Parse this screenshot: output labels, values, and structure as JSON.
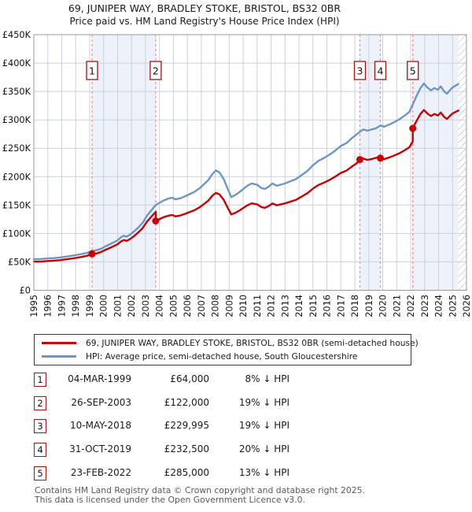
{
  "title": "69, JUNIPER WAY, BRADLEY STOKE, BRISTOL, BS32 0BR",
  "subtitle": "Price paid vs. HM Land Registry's House Price Index (HPI)",
  "chart_data": {
    "type": "line",
    "title": "69, JUNIPER WAY, BRADLEY STOKE, BRISTOL, BS32 0BR — Price paid vs. HPI",
    "x_range": [
      1995,
      2026
    ],
    "y_range_k": [
      0,
      450
    ],
    "y_tick_labels": [
      "£450K",
      "£400K",
      "£350K",
      "£300K",
      "£250K",
      "£200K",
      "£150K",
      "£100K",
      "£50K",
      "£0"
    ],
    "x_tick_labels": [
      "1995",
      "1996",
      "1997",
      "1998",
      "1999",
      "2000",
      "2001",
      "2002",
      "2003",
      "2004",
      "2005",
      "2006",
      "2007",
      "2008",
      "2009",
      "2010",
      "2011",
      "2012",
      "2013",
      "2014",
      "2015",
      "2016",
      "2017",
      "2018",
      "2019",
      "2020",
      "2021",
      "2022",
      "2023",
      "2024",
      "2025",
      "2026"
    ],
    "grid": true,
    "legend_position": "below",
    "colors": {
      "property": "#cc0000",
      "hpi": "#6d96c8",
      "band": "#edf1fa",
      "grid": "#ccd1da",
      "axis": "#999999",
      "sale_dash": "#f48c8c",
      "marker_border": "#aa1111",
      "hatch_line": "#aaaaaa"
    },
    "ownership_bands": [
      [
        1999.17,
        2003.73
      ],
      [
        2018.36,
        2019.83
      ],
      [
        2022.15,
        2025.42
      ]
    ],
    "future_hatch": [
      2025.42,
      2026
    ],
    "series": [
      {
        "name": "HPI: Average price, semi-detached house, South Gloucestershire",
        "color": "#6d96c8",
        "points": [
          [
            1995.0,
            55
          ],
          [
            1995.3,
            54.6
          ],
          [
            1995.6,
            55.2
          ],
          [
            1996.0,
            56
          ],
          [
            1996.4,
            56.6
          ],
          [
            1996.8,
            57.4
          ],
          [
            1997.2,
            58.8
          ],
          [
            1997.6,
            60.2
          ],
          [
            1998.0,
            61.8
          ],
          [
            1998.4,
            63.6
          ],
          [
            1998.8,
            65.8
          ],
          [
            1999.17,
            69.5
          ],
          [
            1999.5,
            70.5
          ],
          [
            1999.8,
            73
          ],
          [
            2000.1,
            77
          ],
          [
            2000.4,
            80.5
          ],
          [
            2000.7,
            84
          ],
          [
            2001.0,
            88
          ],
          [
            2001.25,
            93.5
          ],
          [
            2001.45,
            96
          ],
          [
            2001.65,
            94.5
          ],
          [
            2001.9,
            98
          ],
          [
            2002.2,
            104
          ],
          [
            2002.5,
            111
          ],
          [
            2002.8,
            119
          ],
          [
            2003.1,
            131
          ],
          [
            2003.4,
            140
          ],
          [
            2003.73,
            150
          ],
          [
            2004.0,
            154
          ],
          [
            2004.3,
            158
          ],
          [
            2004.6,
            161
          ],
          [
            2004.9,
            163
          ],
          [
            2005.15,
            160
          ],
          [
            2005.5,
            162
          ],
          [
            2005.8,
            165
          ],
          [
            2006.1,
            168.5
          ],
          [
            2006.5,
            173
          ],
          [
            2006.9,
            180
          ],
          [
            2007.2,
            187
          ],
          [
            2007.5,
            194
          ],
          [
            2007.8,
            205
          ],
          [
            2008.05,
            211
          ],
          [
            2008.3,
            207.5
          ],
          [
            2008.6,
            196
          ],
          [
            2008.9,
            178
          ],
          [
            2009.15,
            164
          ],
          [
            2009.45,
            168
          ],
          [
            2009.75,
            173
          ],
          [
            2010.0,
            178
          ],
          [
            2010.3,
            184
          ],
          [
            2010.6,
            188
          ],
          [
            2011.0,
            186
          ],
          [
            2011.3,
            180
          ],
          [
            2011.55,
            178.5
          ],
          [
            2011.8,
            182
          ],
          [
            2012.1,
            188
          ],
          [
            2012.4,
            184
          ],
          [
            2012.7,
            186
          ],
          [
            2013.0,
            188
          ],
          [
            2013.4,
            192
          ],
          [
            2013.8,
            196
          ],
          [
            2014.2,
            203
          ],
          [
            2014.6,
            210
          ],
          [
            2015.0,
            220
          ],
          [
            2015.4,
            228
          ],
          [
            2015.8,
            233
          ],
          [
            2016.2,
            239
          ],
          [
            2016.6,
            246
          ],
          [
            2017.0,
            254
          ],
          [
            2017.4,
            259
          ],
          [
            2017.8,
            268
          ],
          [
            2018.1,
            274
          ],
          [
            2018.36,
            279
          ],
          [
            2018.6,
            283
          ],
          [
            2018.9,
            281
          ],
          [
            2019.2,
            283
          ],
          [
            2019.5,
            285
          ],
          [
            2019.83,
            290
          ],
          [
            2020.1,
            288
          ],
          [
            2020.5,
            292
          ],
          [
            2020.9,
            297
          ],
          [
            2021.2,
            301
          ],
          [
            2021.6,
            308
          ],
          [
            2021.9,
            314
          ],
          [
            2022.15,
            327
          ],
          [
            2022.4,
            341
          ],
          [
            2022.7,
            356
          ],
          [
            2022.95,
            364
          ],
          [
            2023.2,
            357
          ],
          [
            2023.45,
            352
          ],
          [
            2023.7,
            356
          ],
          [
            2023.95,
            353
          ],
          [
            2024.15,
            359
          ],
          [
            2024.4,
            350
          ],
          [
            2024.6,
            346
          ],
          [
            2024.8,
            352
          ],
          [
            2025.0,
            357
          ],
          [
            2025.2,
            360
          ],
          [
            2025.42,
            363
          ]
        ]
      },
      {
        "name": "69, JUNIPER WAY, BRADLEY STOKE, BRISTOL, BS32 0BR (semi-detached house)",
        "color": "#cc0000",
        "points": [
          [
            1995.0,
            50.7
          ],
          [
            1995.3,
            50.3
          ],
          [
            1995.6,
            50.8
          ],
          [
            1996.0,
            51.6
          ],
          [
            1996.4,
            52.1
          ],
          [
            1996.8,
            52.9
          ],
          [
            1997.2,
            54.2
          ],
          [
            1997.6,
            55.4
          ],
          [
            1998.0,
            56.9
          ],
          [
            1998.4,
            58.6
          ],
          [
            1998.8,
            60.6
          ],
          [
            1999.17,
            64
          ],
          [
            1999.5,
            64.9
          ],
          [
            1999.8,
            67.2
          ],
          [
            2000.1,
            70.9
          ],
          [
            2000.4,
            74.1
          ],
          [
            2000.7,
            77.4
          ],
          [
            2001.0,
            81
          ],
          [
            2001.25,
            86.1
          ],
          [
            2001.45,
            88.4
          ],
          [
            2001.65,
            87
          ],
          [
            2001.9,
            90.3
          ],
          [
            2002.2,
            95.8
          ],
          [
            2002.5,
            102.2
          ],
          [
            2002.8,
            109.6
          ],
          [
            2003.1,
            120.6
          ],
          [
            2003.4,
            129
          ],
          [
            2003.73,
            138
          ],
          [
            2003.73,
            122
          ],
          [
            2004.0,
            125.3
          ],
          [
            2004.3,
            128.5
          ],
          [
            2004.6,
            131
          ],
          [
            2004.9,
            132.6
          ],
          [
            2005.15,
            130.1
          ],
          [
            2005.5,
            131.8
          ],
          [
            2005.8,
            134.2
          ],
          [
            2006.1,
            137.1
          ],
          [
            2006.5,
            140.7
          ],
          [
            2006.9,
            146.4
          ],
          [
            2007.2,
            152.1
          ],
          [
            2007.5,
            157.8
          ],
          [
            2007.8,
            166.7
          ],
          [
            2008.05,
            171.6
          ],
          [
            2008.3,
            168.8
          ],
          [
            2008.6,
            159.4
          ],
          [
            2008.9,
            144.8
          ],
          [
            2009.15,
            133.4
          ],
          [
            2009.45,
            136.6
          ],
          [
            2009.75,
            140.7
          ],
          [
            2010.0,
            144.8
          ],
          [
            2010.3,
            149.6
          ],
          [
            2010.6,
            152.9
          ],
          [
            2011.0,
            151.3
          ],
          [
            2011.3,
            146.4
          ],
          [
            2011.55,
            145.2
          ],
          [
            2011.8,
            148
          ],
          [
            2012.1,
            152.9
          ],
          [
            2012.4,
            149.6
          ],
          [
            2012.7,
            151.3
          ],
          [
            2013.0,
            152.9
          ],
          [
            2013.4,
            156.2
          ],
          [
            2013.8,
            159.4
          ],
          [
            2014.2,
            165
          ],
          [
            2014.6,
            170.8
          ],
          [
            2015.0,
            178.9
          ],
          [
            2015.4,
            185.4
          ],
          [
            2015.8,
            189.5
          ],
          [
            2016.2,
            194.4
          ],
          [
            2016.6,
            200.1
          ],
          [
            2017.0,
            206.6
          ],
          [
            2017.4,
            210.6
          ],
          [
            2017.8,
            218
          ],
          [
            2018.1,
            222.8
          ],
          [
            2018.36,
            230
          ],
          [
            2018.6,
            232
          ],
          [
            2018.9,
            229.5
          ],
          [
            2019.2,
            231
          ],
          [
            2019.5,
            233
          ],
          [
            2019.83,
            235.5
          ],
          [
            2019.83,
            232.5
          ],
          [
            2020.1,
            230.9
          ],
          [
            2020.5,
            234.1
          ],
          [
            2020.9,
            238.1
          ],
          [
            2021.2,
            241.3
          ],
          [
            2021.6,
            246.9
          ],
          [
            2021.9,
            251.7
          ],
          [
            2022.15,
            262
          ],
          [
            2022.15,
            285
          ],
          [
            2022.4,
            297.2
          ],
          [
            2022.7,
            310.3
          ],
          [
            2022.95,
            317.3
          ],
          [
            2023.2,
            311.2
          ],
          [
            2023.45,
            306.8
          ],
          [
            2023.7,
            310.3
          ],
          [
            2023.95,
            307.7
          ],
          [
            2024.15,
            312.9
          ],
          [
            2024.4,
            305.1
          ],
          [
            2024.6,
            301.6
          ],
          [
            2024.8,
            306.8
          ],
          [
            2025.0,
            311.2
          ],
          [
            2025.2,
            313.8
          ],
          [
            2025.42,
            316.4
          ]
        ]
      }
    ],
    "sale_points": [
      {
        "n": "1",
        "year": 1999.17,
        "price_k": 64
      },
      {
        "n": "2",
        "year": 2003.73,
        "price_k": 122
      },
      {
        "n": "3",
        "year": 2018.36,
        "price_k": 230
      },
      {
        "n": "4",
        "year": 2019.83,
        "price_k": 232.5
      },
      {
        "n": "5",
        "year": 2022.15,
        "price_k": 285
      }
    ]
  },
  "legend": {
    "entries": [
      {
        "label": "69, JUNIPER WAY, BRADLEY STOKE, BRISTOL, BS32 0BR (semi-detached house)",
        "color": "#cc0000"
      },
      {
        "label": "HPI: Average price, semi-detached house, South Gloucestershire",
        "color": "#6d96c8"
      }
    ]
  },
  "transactions": [
    {
      "num": "1",
      "date": "04-MAR-1999",
      "price": "£64,000",
      "vs_hpi": "8% ↓ HPI"
    },
    {
      "num": "2",
      "date": "26-SEP-2003",
      "price": "£122,000",
      "vs_hpi": "19% ↓ HPI"
    },
    {
      "num": "3",
      "date": "10-MAY-2018",
      "price": "£229,995",
      "vs_hpi": "19% ↓ HPI"
    },
    {
      "num": "4",
      "date": "31-OCT-2019",
      "price": "£232,500",
      "vs_hpi": "20% ↓ HPI"
    },
    {
      "num": "5",
      "date": "23-FEB-2022",
      "price": "£285,000",
      "vs_hpi": "13% ↓ HPI"
    }
  ],
  "footer": {
    "line1": "Contains HM Land Registry data © Crown copyright and database right 2025.",
    "line2": "This data is licensed under the Open Government Licence v3.0."
  }
}
